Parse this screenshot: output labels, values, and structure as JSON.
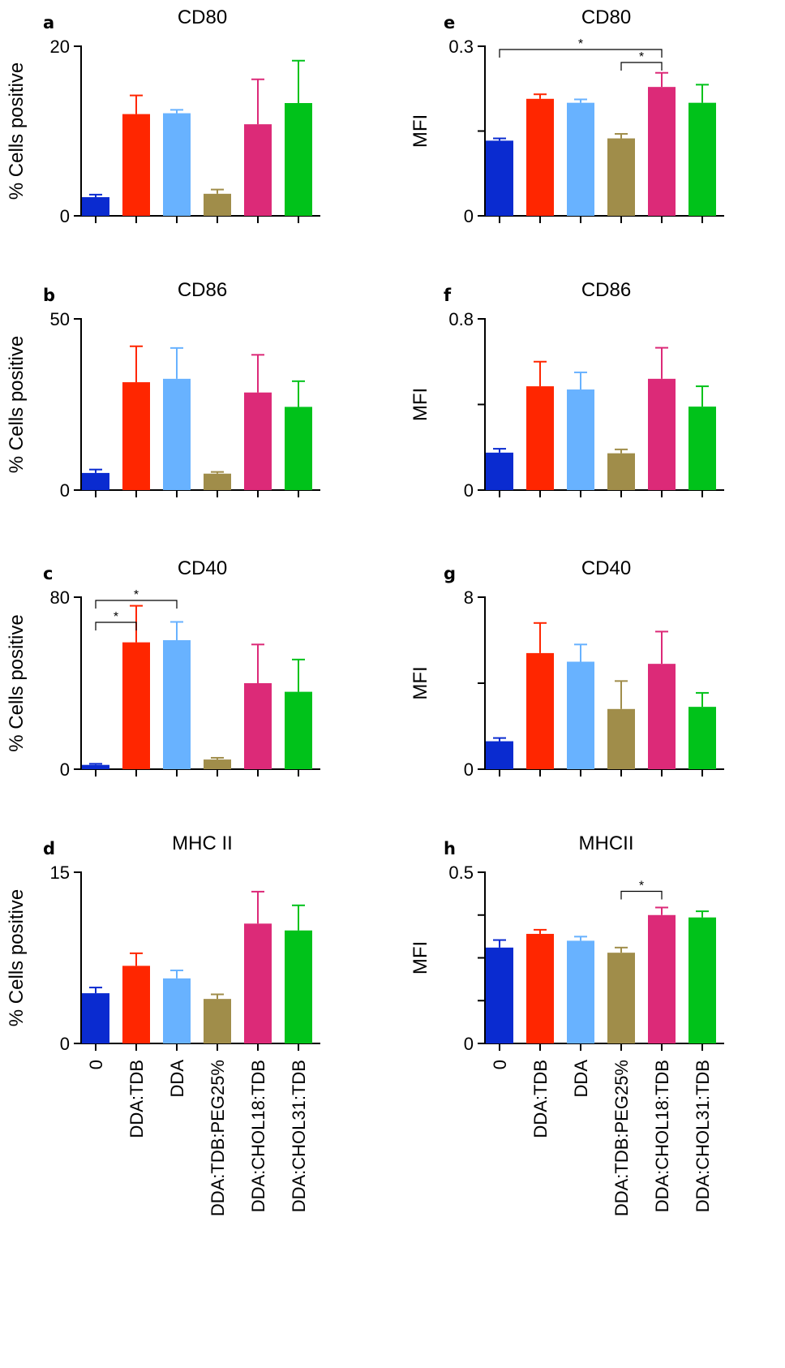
{
  "figure": {
    "description_free": true
  },
  "categories": [
    "0",
    "DDA:TDB",
    "DDA",
    "DDA:TDB:PEG25%",
    "DDA:CHOL18:TDB",
    "DDA:CHOL31:TDB"
  ],
  "colors": [
    "#0a2bd0",
    "#ff2600",
    "#68b2ff",
    "#a08d4a",
    "#dc2a78",
    "#00c21a"
  ],
  "chart_data": [
    {
      "id": "a",
      "panel_letter": "a",
      "type": "bar",
      "title": "CD80",
      "ylabel": "% Cells positive",
      "ylim": [
        0,
        20
      ],
      "yticks": [
        "0",
        "20"
      ],
      "minor_ticks": 0,
      "values": [
        2.2,
        12.0,
        12.1,
        2.6,
        10.8,
        13.3
      ],
      "errors": [
        0.3,
        2.2,
        0.4,
        0.5,
        5.3,
        5.0
      ],
      "significance": []
    },
    {
      "id": "b",
      "panel_letter": "b",
      "type": "bar",
      "title": "CD86",
      "ylabel": "% Cells positive",
      "ylim": [
        0,
        50
      ],
      "yticks": [
        "0",
        "50"
      ],
      "minor_ticks": 0,
      "values": [
        5.0,
        31.5,
        32.5,
        4.8,
        28.5,
        24.3
      ],
      "errors": [
        1.0,
        10.5,
        9.0,
        0.5,
        11.0,
        7.5
      ],
      "significance": []
    },
    {
      "id": "c",
      "panel_letter": "c",
      "type": "bar",
      "title": "CD40",
      "ylabel": "% Cells positive",
      "ylim": [
        0,
        80
      ],
      "yticks": [
        "0",
        "80"
      ],
      "minor_ticks": 0,
      "values": [
        2.0,
        59.0,
        60.0,
        4.5,
        40.0,
        36.0
      ],
      "errors": [
        0.5,
        17.0,
        8.5,
        0.8,
        18.0,
        15.0
      ],
      "significance": [
        {
          "from": 0,
          "to": 1,
          "label": "*"
        },
        {
          "from": 0,
          "to": 2,
          "label": "*"
        }
      ]
    },
    {
      "id": "d",
      "panel_letter": "d",
      "type": "bar",
      "title": "MHC II",
      "ylabel": "% Cells positive",
      "ylim": [
        0,
        15
      ],
      "yticks": [
        "0",
        "15"
      ],
      "minor_ticks": 0,
      "values": [
        4.4,
        6.8,
        5.7,
        3.9,
        10.5,
        9.9
      ],
      "errors": [
        0.5,
        1.1,
        0.7,
        0.4,
        2.8,
        2.2
      ],
      "significance": []
    },
    {
      "id": "e",
      "panel_letter": "e",
      "type": "bar",
      "title": "CD80",
      "ylabel": "MFI",
      "ylim": [
        0,
        0.3
      ],
      "yticks": [
        "0",
        "0.3"
      ],
      "minor_ticks": 1,
      "values": [
        0.133,
        0.207,
        0.2,
        0.137,
        0.228,
        0.2
      ],
      "errors": [
        0.004,
        0.008,
        0.006,
        0.008,
        0.025,
        0.032
      ],
      "significance": [
        {
          "from": 0,
          "to": 4,
          "label": "*"
        },
        {
          "from": 3,
          "to": 4,
          "label": "*"
        }
      ]
    },
    {
      "id": "f",
      "panel_letter": "f",
      "type": "bar",
      "title": "CD86",
      "ylabel": "MFI",
      "ylim": [
        0,
        0.8
      ],
      "yticks": [
        "0",
        "0.8"
      ],
      "minor_ticks": 1,
      "values": [
        0.175,
        0.485,
        0.47,
        0.172,
        0.52,
        0.39
      ],
      "errors": [
        0.018,
        0.115,
        0.08,
        0.018,
        0.145,
        0.095
      ],
      "significance": []
    },
    {
      "id": "g",
      "panel_letter": "g",
      "type": "bar",
      "title": "CD40",
      "ylabel": "MFI",
      "ylim": [
        0,
        8
      ],
      "yticks": [
        "0",
        "8"
      ],
      "minor_ticks": 1,
      "values": [
        1.3,
        5.4,
        5.0,
        2.8,
        4.9,
        2.9
      ],
      "errors": [
        0.15,
        1.4,
        0.8,
        1.3,
        1.5,
        0.65
      ],
      "significance": []
    },
    {
      "id": "h",
      "panel_letter": "h",
      "type": "bar",
      "title": "MHCII",
      "ylabel": "MFI",
      "ylim": [
        0,
        0.5
      ],
      "yticks": [
        "0",
        "0.5"
      ],
      "minor_ticks": 3,
      "values": [
        0.28,
        0.32,
        0.3,
        0.265,
        0.375,
        0.368
      ],
      "errors": [
        0.022,
        0.012,
        0.012,
        0.015,
        0.022,
        0.018
      ],
      "significance": [
        {
          "from": 3,
          "to": 4,
          "label": "*"
        }
      ]
    }
  ]
}
